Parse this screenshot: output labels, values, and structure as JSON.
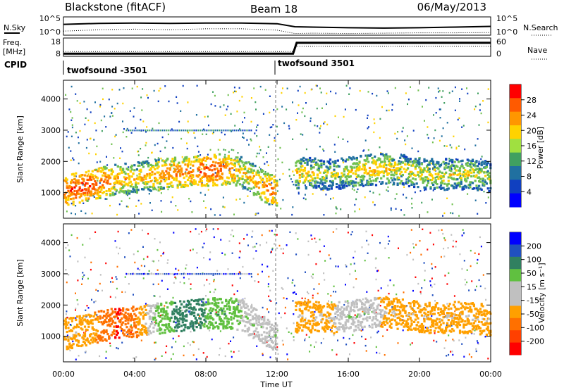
{
  "header": {
    "station_title": "Blackstone (fitACF)",
    "beam_label": "Beam 18",
    "date_label": "06/May/2013"
  },
  "noise_panel": {
    "left_label": "N.Sky",
    "right_label": "N.Search",
    "left_ticks": [
      "10^5",
      "10^0"
    ],
    "right_ticks": [
      "10^5",
      "10^0"
    ]
  },
  "freq_panel": {
    "left_label_line1": "Freq.",
    "left_label_line2": "[MHz]",
    "left_ticks": [
      "18",
      "8"
    ],
    "right_label": "Nave",
    "right_ticks": [
      "60",
      "0"
    ]
  },
  "cpid_panel": {
    "label": "CPID",
    "segments": [
      {
        "text": "twofsound -3501"
      },
      {
        "text": "twofsound 3501"
      }
    ]
  },
  "power_panel": {
    "ylabel": "Slant Range [km]",
    "yticks": [
      "4000",
      "3000",
      "2000",
      "1000"
    ],
    "colorbar_label": "Power [dB]",
    "colorbar_ticks": [
      "28",
      "24",
      "20",
      "16",
      "12",
      "8",
      "4"
    ],
    "colorbar_colors": [
      "#ff0000",
      "#ff5a00",
      "#ff9600",
      "#ffd200",
      "#a0e040",
      "#40a060",
      "#2070a0",
      "#1040c0",
      "#0000ff"
    ]
  },
  "velocity_panel": {
    "ylabel": "Slant Range [km]",
    "yticks": [
      "4000",
      "3000",
      "2000",
      "1000"
    ],
    "colorbar_label": "Velocity [m s⁻¹]",
    "colorbar_ticks": [
      "200",
      "100",
      "50",
      "15",
      "-15",
      "-50",
      "-100",
      "-200"
    ],
    "colorbar_colors": [
      "#0000ff",
      "#2050c0",
      "#308060",
      "#60c040",
      "#c0c0c0",
      "#c0c0c0",
      "#ffa000",
      "#ff7000",
      "#ff4000",
      "#ff0000"
    ]
  },
  "xaxis": {
    "xlabel": "Time UT",
    "ticks": [
      "00:00",
      "04:00",
      "08:00",
      "12:00",
      "16:00",
      "20:00",
      "00:00"
    ]
  },
  "chart_data": [
    {
      "type": "line",
      "title": "N.Sky / N.Search",
      "x": [
        0,
        2,
        4,
        6,
        8,
        10,
        12,
        13,
        14,
        16,
        18,
        20,
        22,
        24
      ],
      "series": [
        {
          "name": "N.Sky",
          "values": [
            3.2,
            3.5,
            3.6,
            3.5,
            3.6,
            3.6,
            3.4,
            2.5,
            2.4,
            2.2,
            2.1,
            2.2,
            2.4,
            2.6
          ]
        },
        {
          "name": "N.Search",
          "values": [
            1.2,
            1.6,
            1.8,
            1.6,
            1.9,
            1.9,
            1.5,
            0.5,
            0.6,
            0.5,
            0.6,
            0.7,
            0.7,
            0.8
          ]
        }
      ]
    },
    {
      "type": "line",
      "title": "Freq. / Nave",
      "x": [
        0,
        12.9,
        13.1,
        24
      ],
      "series": [
        {
          "name": "Freq.",
          "values": [
            9.6,
            9.6,
            16.0,
            16.0
          ]
        },
        {
          "name": "Nave",
          "values": [
            17,
            17,
            36,
            36
          ]
        }
      ]
    },
    {
      "type": "heatmap",
      "title": "Power [dB]",
      "xlabel": "Time UT",
      "ylabel": "Slant Range [km]",
      "xlim": [
        0,
        24
      ],
      "ylim": [
        180,
        4600
      ],
      "bands": [
        {
          "x": [
            0,
            1,
            2,
            3,
            4,
            5,
            6,
            7,
            8,
            9,
            10,
            11,
            12
          ],
          "y": [
            1100,
            1200,
            1350,
            1450,
            1500,
            1580,
            1650,
            1700,
            1750,
            1780,
            1700,
            1300,
            1000
          ],
          "values": [
            26,
            28,
            26,
            22,
            20,
            22,
            24,
            24,
            28,
            26,
            20,
            22,
            26
          ]
        },
        {
          "x": [
            13,
            14,
            15,
            16,
            17,
            18,
            19,
            20,
            21,
            22,
            23,
            24
          ],
          "y": [
            1650,
            1650,
            1600,
            1700,
            1750,
            1800,
            1750,
            1650,
            1600,
            1650,
            1600,
            1550
          ],
          "values": [
            20,
            18,
            16,
            18,
            20,
            20,
            18,
            18,
            18,
            18,
            18,
            16
          ]
        }
      ]
    },
    {
      "type": "heatmap",
      "title": "Velocity [m s⁻¹]",
      "xlabel": "Time UT",
      "ylabel": "Slant Range [km]",
      "xlim": [
        0,
        24
      ],
      "ylim": [
        180,
        4600
      ],
      "bands": [
        {
          "x": [
            0,
            1,
            2,
            3,
            4,
            5,
            6,
            7,
            8,
            9,
            10,
            11,
            12
          ],
          "y": [
            1100,
            1200,
            1350,
            1450,
            1500,
            1580,
            1650,
            1700,
            1750,
            1780,
            1700,
            1300,
            1000
          ],
          "values": [
            -15,
            -15,
            -50,
            -100,
            -50,
            15,
            50,
            100,
            50,
            50,
            15,
            15,
            15
          ]
        },
        {
          "x": [
            13,
            14,
            15,
            16,
            17,
            18,
            19,
            20,
            21,
            22,
            23,
            24
          ],
          "y": [
            1650,
            1650,
            1600,
            1700,
            1750,
            1800,
            1750,
            1650,
            1600,
            1650,
            1600,
            1550
          ],
          "values": [
            -15,
            -15,
            -15,
            15,
            15,
            -15,
            -15,
            -15,
            -15,
            -15,
            -15,
            -15
          ]
        }
      ]
    }
  ]
}
